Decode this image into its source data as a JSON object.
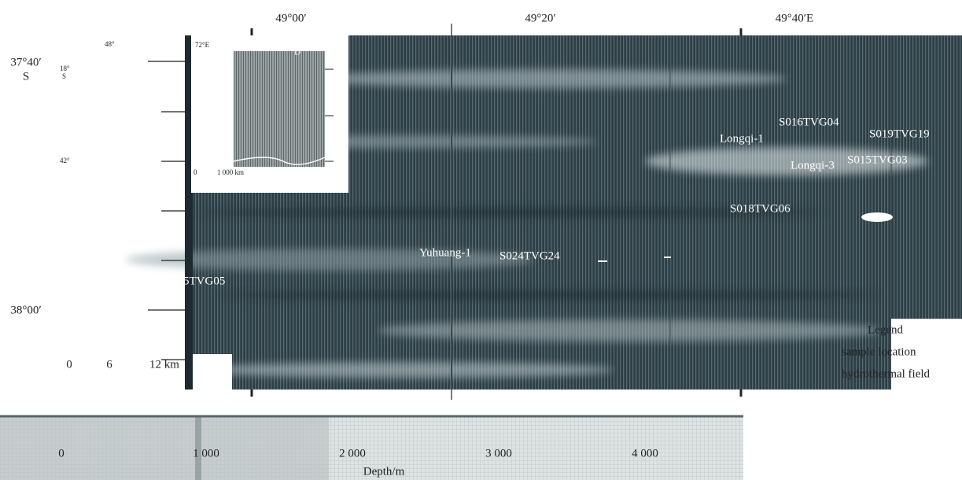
{
  "map": {
    "longitude_labels": [
      "49°00′",
      "49°20′",
      "49°40′E"
    ],
    "latitude_labels": [
      "37°40′",
      "S",
      "38°00′"
    ],
    "inset": {
      "lon_label": "72°E",
      "lat_labels": [
        "48°",
        "18°",
        "S",
        "42°"
      ],
      "marker": "D",
      "scale": [
        "0",
        "1 000 km"
      ]
    },
    "scale_bar": [
      "0",
      "6",
      "12 km"
    ],
    "sites": [
      "5TVG05",
      "Yuhuang-1",
      "S024TVG24",
      "S018TVG06",
      "Longqi-1",
      "S016TVG04",
      "S019TVG19",
      "Longqi-3",
      "S015TVG03"
    ],
    "legend": {
      "title": "Legend",
      "items": [
        "sample location",
        "hydrothermal field"
      ]
    }
  },
  "depth_bar": {
    "ticks": [
      "0",
      "1 000",
      "2 000",
      "3 000",
      "4 000"
    ],
    "label": "Depth/m"
  }
}
